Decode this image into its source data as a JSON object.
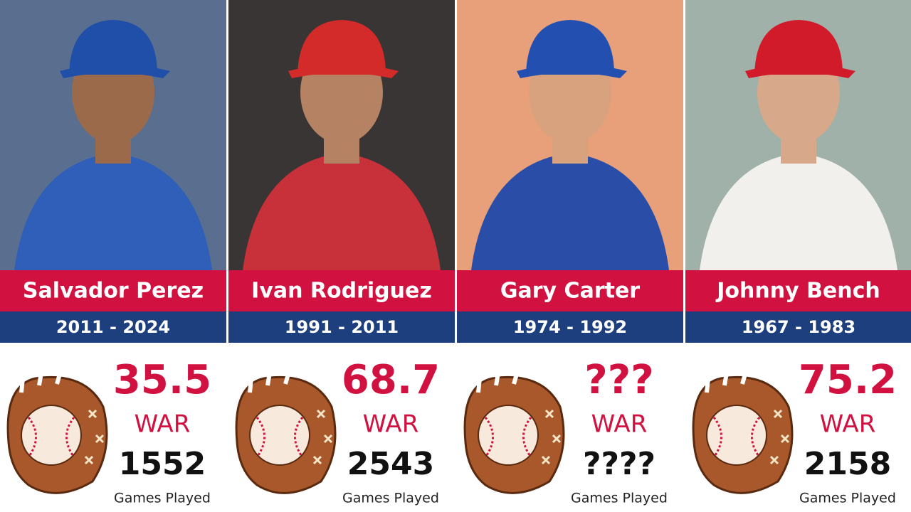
{
  "cards": [
    {
      "name": "Salvador Perez",
      "years": "2011 - 2024",
      "war": 35.5,
      "war_label": "WAR",
      "games": 1552,
      "games_label": "Games Played"
    },
    {
      "name": "Ivan Rodriguez",
      "years": "1991 - 2011",
      "war": 68.7,
      "war_label": "WAR",
      "games": 2543,
      "games_label": "Games Played"
    },
    {
      "name": "Gary Carter",
      "years": "1974 - 1992",
      "war": "???",
      "war_label": "WAR",
      "games": "????",
      "games_label": "Games Played"
    },
    {
      "name": "Johnny Bench",
      "years": "1967 - 1983",
      "war": 75.2,
      "war_label": "WAR",
      "games": 2158,
      "games_label": "Games Played"
    }
  ]
}
